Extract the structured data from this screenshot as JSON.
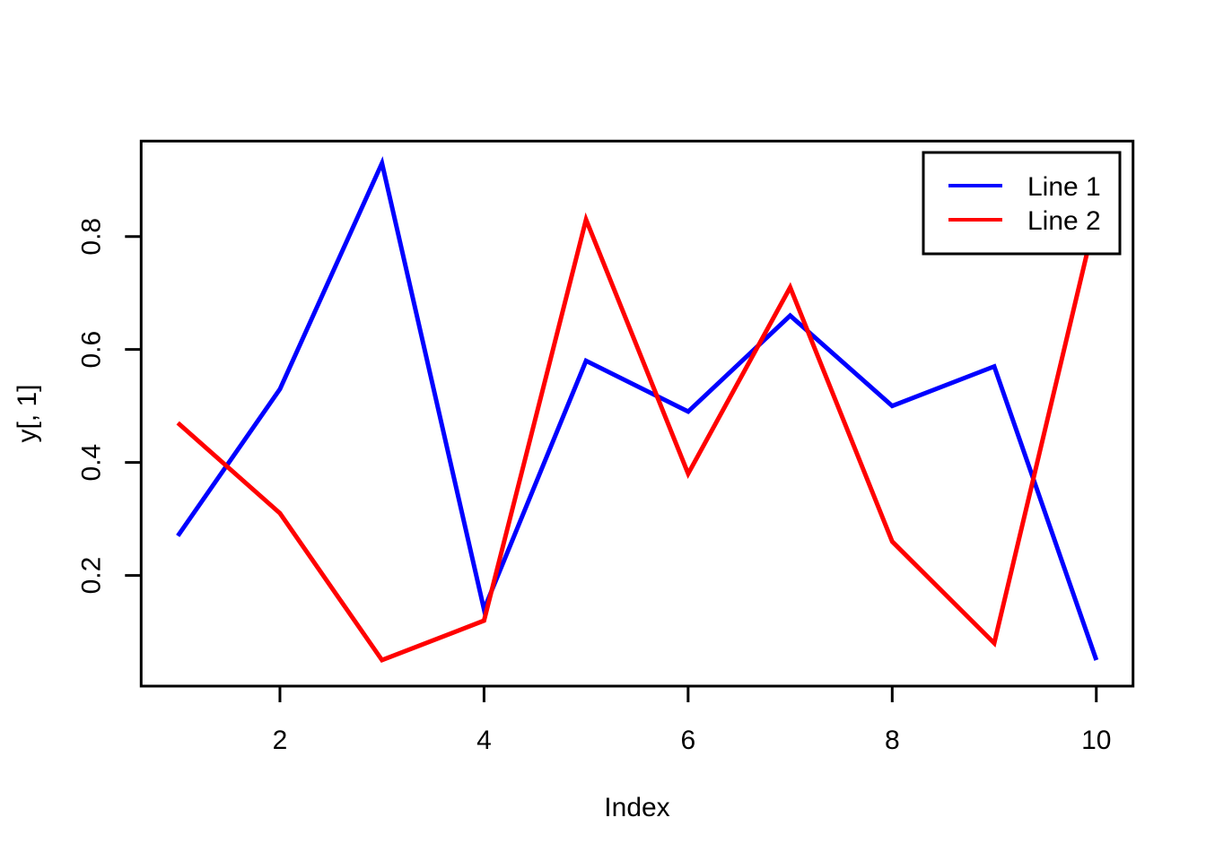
{
  "chart_data": {
    "type": "line",
    "x": [
      1,
      2,
      3,
      4,
      5,
      6,
      7,
      8,
      9,
      10
    ],
    "series": [
      {
        "name": "Line 1",
        "color": "#0000FF",
        "values": [
          0.27,
          0.53,
          0.93,
          0.14,
          0.58,
          0.49,
          0.66,
          0.5,
          0.57,
          0.05
        ]
      },
      {
        "name": "Line 2",
        "color": "#FF0000",
        "values": [
          0.47,
          0.31,
          0.05,
          0.12,
          0.83,
          0.38,
          0.71,
          0.26,
          0.08,
          0.84
        ]
      }
    ],
    "title": "",
    "xlabel": "Index",
    "ylabel": "y[, 1]",
    "xticks": [
      2,
      4,
      6,
      8,
      10
    ],
    "yticks": [
      "0.2",
      "0.4",
      "0.6",
      "0.8"
    ],
    "xlim": [
      0.64,
      10.36
    ],
    "ylim": [
      0.004,
      0.969
    ],
    "grid": false,
    "legend_position": "top-right",
    "axis_color": "#000000",
    "background_color": "#FFFFFF"
  }
}
